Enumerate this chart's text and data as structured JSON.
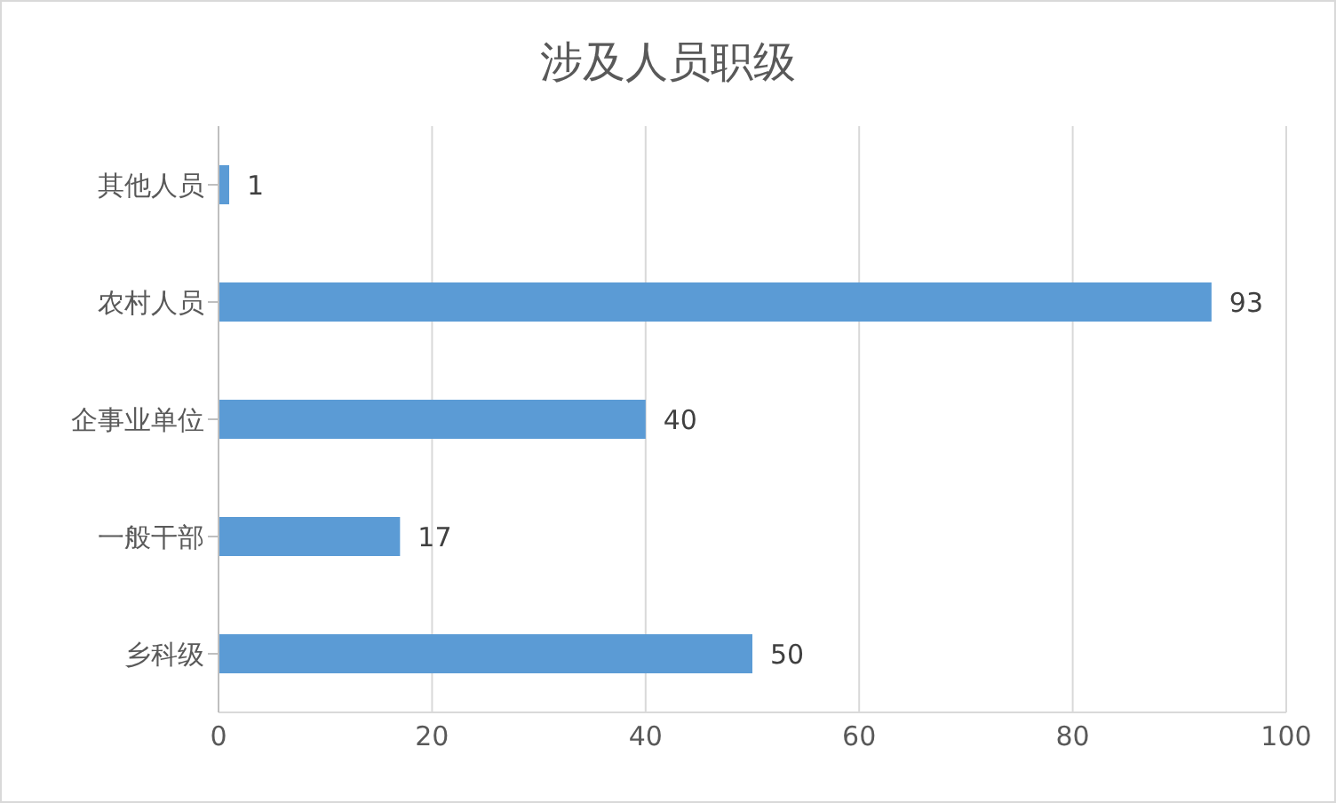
{
  "chart_data": {
    "type": "bar",
    "orientation": "horizontal",
    "title": "涉及人员职级",
    "categories": [
      "其他人员",
      "农村人员",
      "企事业单位",
      "一般干部",
      "乡科级"
    ],
    "values": [
      1,
      93,
      40,
      17,
      50
    ],
    "color": "#5b9bd5",
    "xlim": [
      0,
      100
    ],
    "xticks": [
      0,
      20,
      40,
      60,
      80,
      100
    ],
    "grid": "x",
    "data_labels": true
  }
}
